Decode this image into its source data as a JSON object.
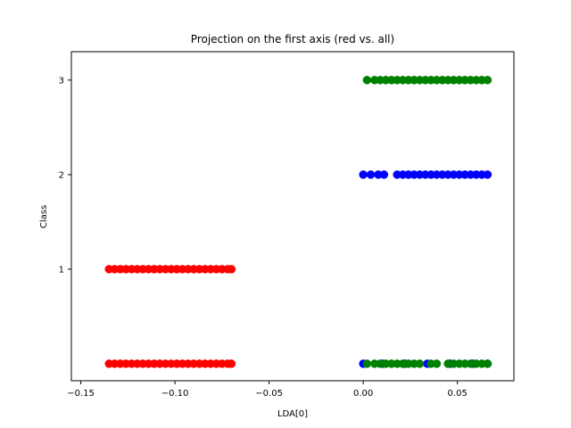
{
  "chart_data": {
    "type": "scatter",
    "title": "Projection on the first axis (red vs. all)",
    "xlabel": "LDA[0]",
    "ylabel": "Class",
    "xlim": [
      -0.155,
      0.08
    ],
    "ylim": [
      -0.18,
      3.3
    ],
    "xticks": [
      -0.15,
      -0.1,
      -0.05,
      0.0,
      0.05
    ],
    "xtick_labels": [
      "−0.15",
      "−0.10",
      "−0.05",
      "0.00",
      "0.05"
    ],
    "yticks": [
      1,
      2,
      3
    ],
    "ytick_labels": [
      "1",
      "2",
      "3"
    ],
    "grid": false,
    "series": [
      {
        "color": "#ff0000",
        "points": [
          [
            -0.135,
            1
          ],
          [
            -0.132,
            1
          ],
          [
            -0.129,
            1
          ],
          [
            -0.126,
            1
          ],
          [
            -0.123,
            1
          ],
          [
            -0.12,
            1
          ],
          [
            -0.117,
            1
          ],
          [
            -0.114,
            1
          ],
          [
            -0.111,
            1
          ],
          [
            -0.108,
            1
          ],
          [
            -0.105,
            1
          ],
          [
            -0.102,
            1
          ],
          [
            -0.099,
            1
          ],
          [
            -0.096,
            1
          ],
          [
            -0.093,
            1
          ],
          [
            -0.09,
            1
          ],
          [
            -0.087,
            1
          ],
          [
            -0.084,
            1
          ],
          [
            -0.081,
            1
          ],
          [
            -0.078,
            1
          ],
          [
            -0.075,
            1
          ],
          [
            -0.072,
            1
          ],
          [
            -0.07,
            1
          ],
          [
            -0.135,
            0
          ],
          [
            -0.132,
            0
          ],
          [
            -0.129,
            0
          ],
          [
            -0.126,
            0
          ],
          [
            -0.123,
            0
          ],
          [
            -0.12,
            0
          ],
          [
            -0.117,
            0
          ],
          [
            -0.114,
            0
          ],
          [
            -0.111,
            0
          ],
          [
            -0.108,
            0
          ],
          [
            -0.105,
            0
          ],
          [
            -0.102,
            0
          ],
          [
            -0.099,
            0
          ],
          [
            -0.096,
            0
          ],
          [
            -0.093,
            0
          ],
          [
            -0.09,
            0
          ],
          [
            -0.087,
            0
          ],
          [
            -0.084,
            0
          ],
          [
            -0.081,
            0
          ],
          [
            -0.078,
            0
          ],
          [
            -0.075,
            0
          ],
          [
            -0.072,
            0
          ],
          [
            -0.07,
            0
          ]
        ]
      },
      {
        "color": "#0000ff",
        "points": [
          [
            0.0,
            2
          ],
          [
            0.004,
            2
          ],
          [
            0.008,
            2
          ],
          [
            0.011,
            2
          ],
          [
            0.018,
            2
          ],
          [
            0.021,
            2
          ],
          [
            0.024,
            2
          ],
          [
            0.027,
            2
          ],
          [
            0.03,
            2
          ],
          [
            0.033,
            2
          ],
          [
            0.036,
            2
          ],
          [
            0.039,
            2
          ],
          [
            0.042,
            2
          ],
          [
            0.045,
            2
          ],
          [
            0.048,
            2
          ],
          [
            0.051,
            2
          ],
          [
            0.054,
            2
          ],
          [
            0.057,
            2
          ],
          [
            0.06,
            2
          ],
          [
            0.063,
            2
          ],
          [
            0.066,
            2
          ],
          [
            0.0,
            0
          ],
          [
            0.01,
            0
          ],
          [
            0.022,
            0
          ],
          [
            0.034,
            0
          ],
          [
            0.046,
            0
          ],
          [
            0.058,
            0
          ],
          [
            0.066,
            0
          ]
        ]
      },
      {
        "color": "#008000",
        "points": [
          [
            0.002,
            3
          ],
          [
            0.006,
            3
          ],
          [
            0.009,
            3
          ],
          [
            0.012,
            3
          ],
          [
            0.015,
            3
          ],
          [
            0.018,
            3
          ],
          [
            0.021,
            3
          ],
          [
            0.024,
            3
          ],
          [
            0.027,
            3
          ],
          [
            0.03,
            3
          ],
          [
            0.033,
            3
          ],
          [
            0.036,
            3
          ],
          [
            0.039,
            3
          ],
          [
            0.042,
            3
          ],
          [
            0.045,
            3
          ],
          [
            0.048,
            3
          ],
          [
            0.051,
            3
          ],
          [
            0.054,
            3
          ],
          [
            0.057,
            3
          ],
          [
            0.06,
            3
          ],
          [
            0.063,
            3
          ],
          [
            0.066,
            3
          ],
          [
            0.002,
            0
          ],
          [
            0.006,
            0
          ],
          [
            0.009,
            0
          ],
          [
            0.012,
            0
          ],
          [
            0.015,
            0
          ],
          [
            0.018,
            0
          ],
          [
            0.021,
            0
          ],
          [
            0.024,
            0
          ],
          [
            0.027,
            0
          ],
          [
            0.03,
            0
          ],
          [
            0.036,
            0
          ],
          [
            0.039,
            0
          ],
          [
            0.045,
            0
          ],
          [
            0.048,
            0
          ],
          [
            0.051,
            0
          ],
          [
            0.054,
            0
          ],
          [
            0.057,
            0
          ],
          [
            0.06,
            0
          ],
          [
            0.063,
            0
          ],
          [
            0.066,
            0
          ]
        ]
      }
    ]
  }
}
